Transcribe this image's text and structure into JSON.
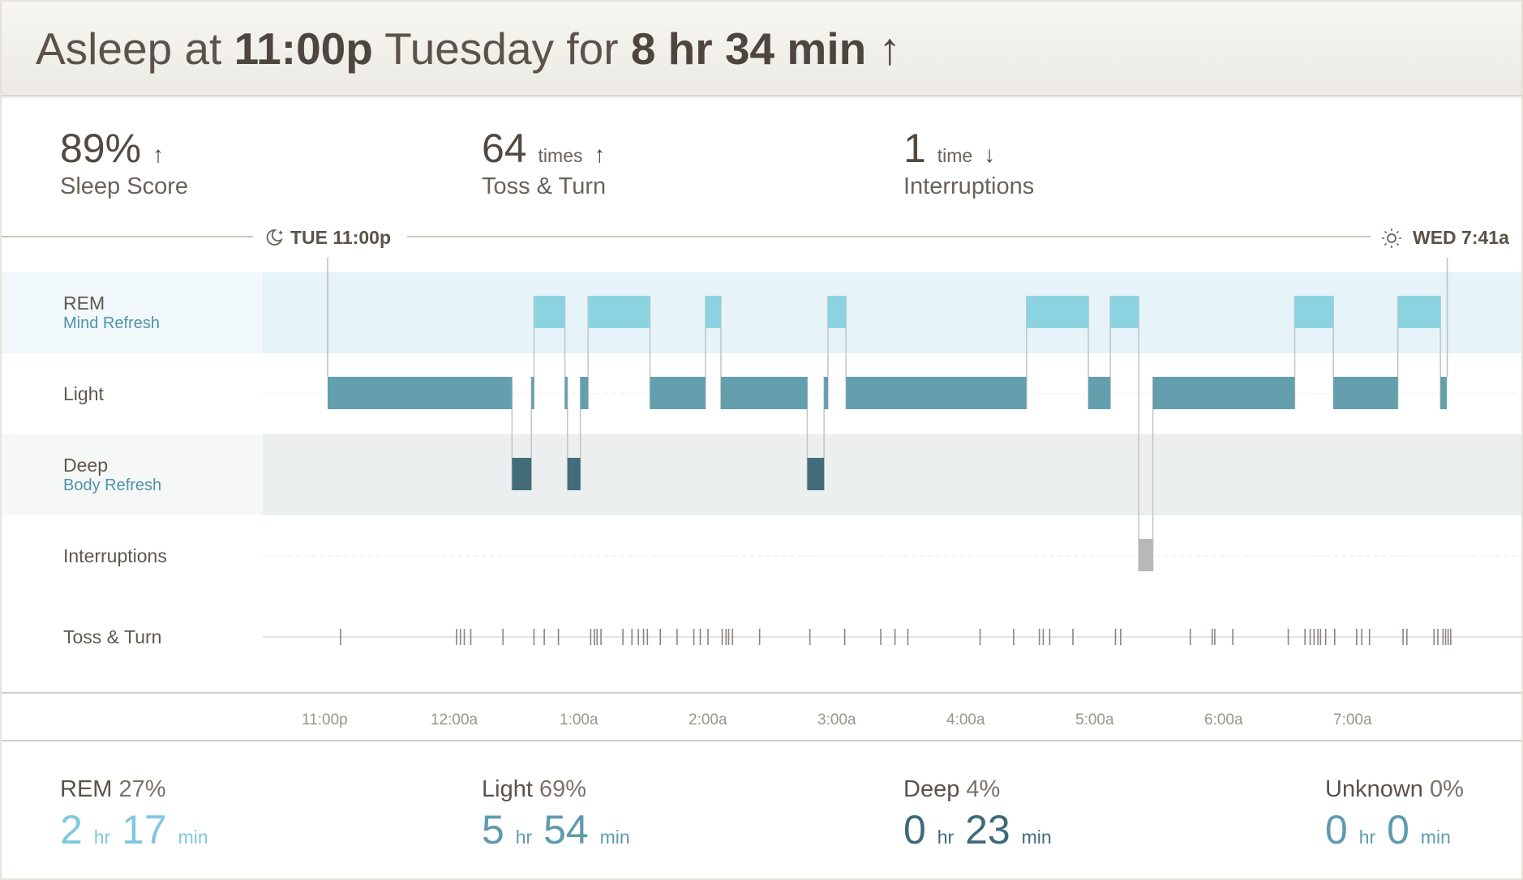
{
  "header": {
    "prefix": "Asleep at",
    "start": "11:00p",
    "day": "Tuesday",
    "for": "for",
    "duration": "8 hr 34 min",
    "trend": "up"
  },
  "stats": [
    {
      "value": "89%",
      "unit": "",
      "label": "Sleep Score",
      "trend": "up"
    },
    {
      "value": "64",
      "unit": "times",
      "label": "Toss & Turn",
      "trend": "up"
    },
    {
      "value": "1",
      "unit": "time",
      "label": "Interruptions",
      "trend": "down"
    }
  ],
  "timeline": {
    "start_label": "TUE 11:00p",
    "end_label": "WED 7:41a",
    "start_icon": "moon-icon",
    "end_icon": "sun-icon"
  },
  "rows": [
    {
      "label": "REM",
      "sub": "Mind Refresh"
    },
    {
      "label": "Light",
      "sub": ""
    },
    {
      "label": "Deep",
      "sub": "Body Refresh"
    },
    {
      "label": "Interruptions",
      "sub": ""
    },
    {
      "label": "Toss & Turn",
      "sub": ""
    }
  ],
  "axis_ticks": [
    "11:00p",
    "12:00a",
    "1:00a",
    "2:00a",
    "3:00a",
    "4:00a",
    "5:00a",
    "6:00a",
    "7:00a"
  ],
  "chart_data": {
    "type": "step",
    "x_unit": "hours after 11:00p",
    "xlim": [
      0,
      8.683
    ],
    "levels": [
      "REM",
      "Light",
      "Deep",
      "Interruptions"
    ],
    "segments": [
      {
        "stage": "Light",
        "start": 0.0,
        "end": 1.43
      },
      {
        "stage": "Deep",
        "start": 1.43,
        "end": 1.58
      },
      {
        "stage": "Light",
        "start": 1.58,
        "end": 1.6
      },
      {
        "stage": "REM",
        "start": 1.6,
        "end": 1.84
      },
      {
        "stage": "Light",
        "start": 1.84,
        "end": 1.86
      },
      {
        "stage": "Deep",
        "start": 1.86,
        "end": 1.96
      },
      {
        "stage": "Light",
        "start": 1.96,
        "end": 2.02
      },
      {
        "stage": "REM",
        "start": 2.02,
        "end": 2.5
      },
      {
        "stage": "Light",
        "start": 2.5,
        "end": 2.93
      },
      {
        "stage": "REM",
        "start": 2.93,
        "end": 3.05
      },
      {
        "stage": "Light",
        "start": 3.05,
        "end": 3.72
      },
      {
        "stage": "Deep",
        "start": 3.72,
        "end": 3.85
      },
      {
        "stage": "Light",
        "start": 3.85,
        "end": 3.88
      },
      {
        "stage": "REM",
        "start": 3.88,
        "end": 4.02
      },
      {
        "stage": "Light",
        "start": 4.02,
        "end": 5.42
      },
      {
        "stage": "REM",
        "start": 5.42,
        "end": 5.9
      },
      {
        "stage": "Light",
        "start": 5.9,
        "end": 6.07
      },
      {
        "stage": "REM",
        "start": 6.07,
        "end": 6.29
      },
      {
        "stage": "Interruptions",
        "start": 6.29,
        "end": 6.4
      },
      {
        "stage": "Light",
        "start": 6.4,
        "end": 7.5
      },
      {
        "stage": "REM",
        "start": 7.5,
        "end": 7.8
      },
      {
        "stage": "Light",
        "start": 7.8,
        "end": 8.3
      },
      {
        "stage": "REM",
        "start": 8.3,
        "end": 8.63
      },
      {
        "stage": "Light",
        "start": 8.63,
        "end": 8.68
      }
    ],
    "toss_turn": [
      0.1,
      1.0,
      1.03,
      1.06,
      1.11,
      1.36,
      1.6,
      1.68,
      1.79,
      2.04,
      2.07,
      2.09,
      2.12,
      2.29,
      2.36,
      2.41,
      2.45,
      2.48,
      2.58,
      2.71,
      2.84,
      2.89,
      2.95,
      3.06,
      3.09,
      3.11,
      3.14,
      3.35,
      3.74,
      4.01,
      4.29,
      4.4,
      4.5,
      5.06,
      5.32,
      5.52,
      5.55,
      5.6,
      5.78,
      6.11,
      6.15,
      6.69,
      6.86,
      6.88,
      7.02,
      7.45,
      7.58,
      7.62,
      7.65,
      7.68,
      7.7,
      7.74,
      7.81,
      7.98,
      8.02,
      8.08,
      8.34,
      8.37,
      8.58,
      8.61,
      8.65,
      8.67,
      8.69,
      8.71
    ],
    "colors": {
      "REM": "#8cd3e2",
      "Light": "#649fae",
      "Deep": "#436c79",
      "Interruptions": "#b8b8b8"
    }
  },
  "summary": [
    {
      "name": "REM",
      "pct": "27%",
      "hr": "2",
      "min": "17",
      "color": "#7fc8dd"
    },
    {
      "name": "Light",
      "pct": "69%",
      "hr": "5",
      "min": "54",
      "color": "#5f9bae"
    },
    {
      "name": "Deep",
      "pct": "4%",
      "hr": "0",
      "min": "23",
      "color": "#3e6a79"
    },
    {
      "name": "Unknown",
      "pct": "0%",
      "hr": "0",
      "min": "0",
      "color": "#5f9bae"
    }
  ],
  "units": {
    "hr": "hr",
    "min": "min"
  }
}
